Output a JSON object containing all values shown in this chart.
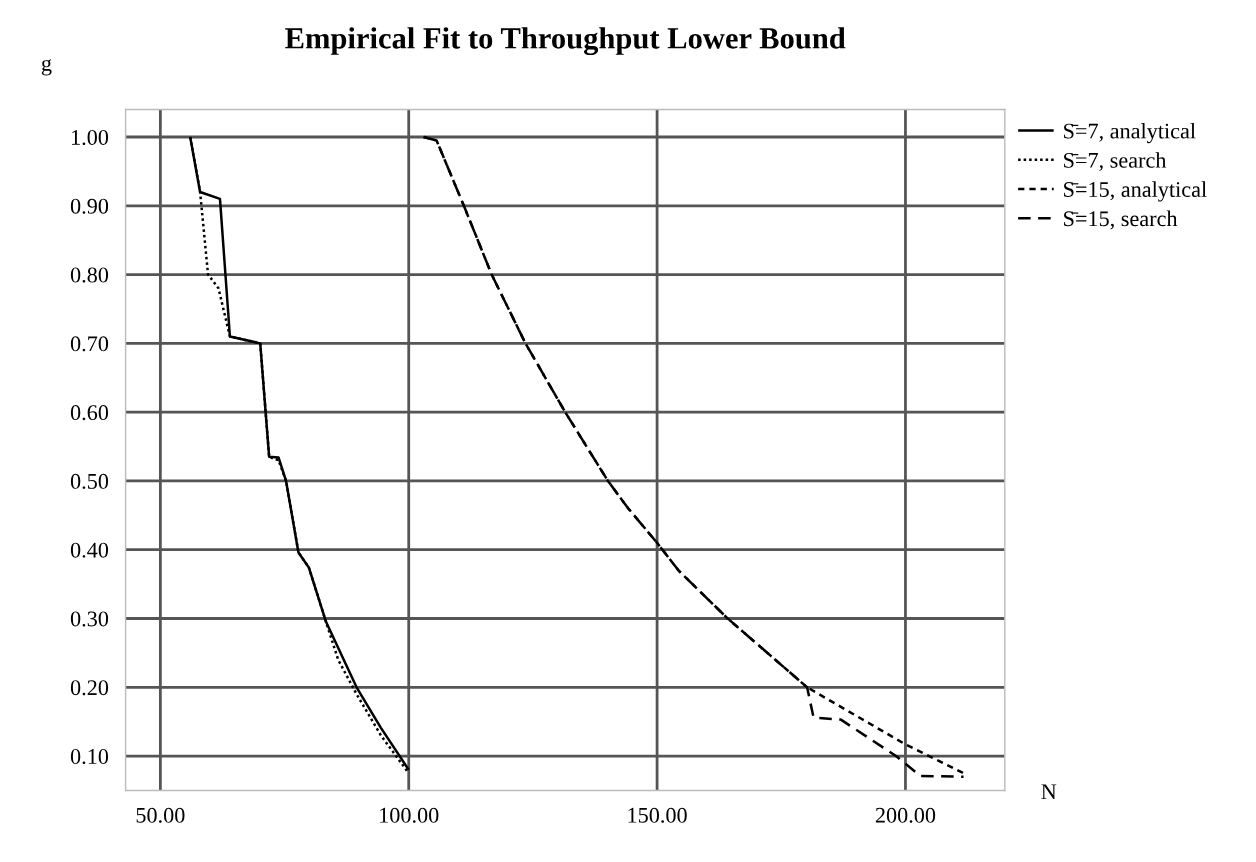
{
  "chart_data": {
    "type": "line",
    "title": "Empirical Fit to Throughput Lower Bound",
    "xlabel": "N",
    "ylabel": "g",
    "xlim": [
      43,
      220
    ],
    "ylim": [
      0.05,
      1.04
    ],
    "xticks": [
      {
        "value": 50,
        "label": "50.00"
      },
      {
        "value": 100,
        "label": "100.00"
      },
      {
        "value": 150,
        "label": "150.00"
      },
      {
        "value": 200,
        "label": "200.00"
      }
    ],
    "yticks": [
      {
        "value": 0.1,
        "label": "0.10"
      },
      {
        "value": 0.2,
        "label": "0.20"
      },
      {
        "value": 0.3,
        "label": "0.30"
      },
      {
        "value": 0.4,
        "label": "0.40"
      },
      {
        "value": 0.5,
        "label": "0.50"
      },
      {
        "value": 0.6,
        "label": "0.60"
      },
      {
        "value": 0.7,
        "label": "0.70"
      },
      {
        "value": 0.8,
        "label": "0.80"
      },
      {
        "value": 0.9,
        "label": "0.90"
      },
      {
        "value": 1.0,
        "label": "1.00"
      }
    ],
    "grid": true,
    "legend": "top right",
    "marker": "none",
    "series": [
      {
        "name": "S̄=7, analytical",
        "color": "#000000",
        "line_style": "solid",
        "x": [
          56,
          58,
          62,
          64,
          70.1,
          71.9,
          73.8,
          75.3,
          77.8,
          79.9,
          83.3,
          89.5,
          94.4,
          100
        ],
        "values": [
          1.0,
          0.92,
          0.91,
          0.71,
          0.7,
          0.535,
          0.534,
          0.5,
          0.396,
          0.374,
          0.296,
          0.2,
          0.141,
          0.08
        ]
      },
      {
        "name": "S̄=7, search",
        "color": "#000000",
        "line_style": "dotted",
        "x": [
          56,
          58,
          59.6,
          61.7,
          64,
          70.1,
          71.9,
          73.8,
          75.3,
          77.8,
          79.9,
          83.3,
          85.8,
          89.5,
          94.4,
          100
        ],
        "values": [
          1.0,
          0.92,
          0.8,
          0.78,
          0.71,
          0.7,
          0.535,
          0.53,
          0.5,
          0.396,
          0.374,
          0.296,
          0.24,
          0.19,
          0.13,
          0.075
        ]
      },
      {
        "name": "S̄=15, analytical",
        "color": "#000000",
        "line_style": "dashed",
        "x": [
          103,
          105.6,
          111.1,
          116.7,
          123.5,
          131.5,
          140.1,
          144.2,
          150,
          154.3,
          164.2,
          180.2,
          200,
          211.7
        ],
        "values": [
          1.0,
          0.995,
          0.9,
          0.8,
          0.7,
          0.6,
          0.5,
          0.46,
          0.41,
          0.37,
          0.3,
          0.2,
          0.117,
          0.075
        ]
      },
      {
        "name": "S̄=15, search",
        "color": "#000000",
        "line_style": "dashed",
        "x": [
          103,
          105.6,
          111.1,
          116.7,
          123.5,
          131.5,
          140.1,
          144.2,
          150,
          154.3,
          164.2,
          180.2,
          181.5,
          187,
          198.1,
          203,
          211.7
        ],
        "values": [
          1.0,
          0.995,
          0.9,
          0.8,
          0.7,
          0.6,
          0.5,
          0.46,
          0.41,
          0.37,
          0.3,
          0.2,
          0.156,
          0.153,
          0.1,
          0.071,
          0.07
        ]
      }
    ]
  }
}
